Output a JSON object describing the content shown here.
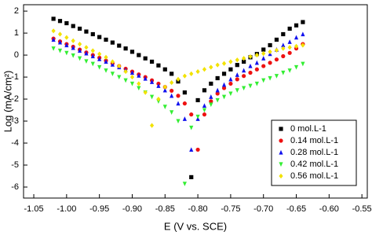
{
  "chart_data": {
    "type": "scatter",
    "x_label": "E (V vs. SCE)",
    "y_label": "Log (mA/cm²)",
    "xlim": [
      -1.0656,
      -0.5418
    ],
    "ylim": [
      -6.5,
      2.29
    ],
    "xticks": [
      {
        "value": -1.05,
        "label": "-1.05"
      },
      {
        "value": -1.0,
        "label": "-1.00"
      },
      -0.95,
      {
        "value": -0.9,
        "label": "-0.90"
      },
      -0.85,
      {
        "value": -0.8,
        "label": "-0.80"
      },
      -0.75,
      {
        "value": -0.7,
        "label": "-0.70"
      },
      -0.65,
      {
        "value": -0.6,
        "label": "-0.60"
      },
      -0.55
    ],
    "yticks": [
      -6,
      -5,
      -4,
      -3,
      -2,
      -1,
      0,
      1,
      2
    ],
    "legend": "lower right",
    "x": [
      -1.02,
      -1.01,
      -1.0,
      -0.99,
      -0.98,
      -0.97,
      -0.96,
      -0.95,
      -0.94,
      -0.93,
      -0.92,
      -0.91,
      -0.9,
      -0.89,
      -0.88,
      -0.87,
      -0.86,
      -0.85,
      -0.84,
      -0.83,
      -0.82,
      -0.81,
      -0.8,
      -0.79,
      -0.78,
      -0.77,
      -0.76,
      -0.75,
      -0.74,
      -0.73,
      -0.72,
      -0.71,
      -0.7,
      -0.69,
      -0.68,
      -0.67,
      -0.66,
      -0.65,
      -0.64
    ],
    "series": [
      {
        "name": "0 mol.L-1",
        "color": "#000000",
        "marker": "square",
        "values": [
          1.65,
          1.55,
          1.45,
          1.32,
          1.2,
          1.07,
          0.95,
          0.82,
          0.7,
          0.57,
          0.43,
          0.3,
          0.15,
          0.0,
          -0.15,
          -0.3,
          -0.47,
          -0.65,
          -0.85,
          -1.2,
          -1.7,
          -5.55,
          -2.05,
          -1.6,
          -1.3,
          -1.05,
          -0.85,
          -0.65,
          -0.45,
          -0.3,
          -0.1,
          0.05,
          0.25,
          0.45,
          0.7,
          0.95,
          1.2,
          1.35,
          1.5
        ]
      },
      {
        "name": "0.14 mol.L-1",
        "color": "#ee1111",
        "marker": "circle",
        "values": [
          0.75,
          0.62,
          0.5,
          0.38,
          0.25,
          0.12,
          0.0,
          -0.12,
          -0.25,
          -0.38,
          -0.5,
          -0.62,
          -0.75,
          -0.88,
          -1.0,
          -1.15,
          -1.3,
          -1.45,
          -1.62,
          -1.85,
          -2.2,
          -2.7,
          -4.3,
          -2.7,
          -2.1,
          -1.75,
          -1.5,
          -1.3,
          -1.1,
          -0.95,
          -0.8,
          -0.65,
          -0.5,
          -0.35,
          -0.2,
          -0.05,
          0.1,
          0.3,
          0.5
        ]
      },
      {
        "name": "0.28 mol.L-1",
        "color": "#1111ee",
        "marker": "triangle",
        "values": [
          0.7,
          0.58,
          0.45,
          0.33,
          0.2,
          0.08,
          -0.05,
          -0.18,
          -0.3,
          -0.43,
          -0.55,
          -0.68,
          -0.8,
          -0.93,
          -1.07,
          -1.22,
          -1.4,
          -1.6,
          -1.85,
          -2.2,
          -2.9,
          -4.3,
          -2.9,
          -2.3,
          -1.9,
          -1.6,
          -1.35,
          -1.1,
          -0.9,
          -0.7,
          -0.5,
          -0.35,
          -0.15,
          0.05,
          0.25,
          0.45,
          0.6,
          0.8,
          0.95
        ]
      },
      {
        "name": "0.42 mol.L-1",
        "color": "#33ee33",
        "marker": "triangle-down",
        "values": [
          0.3,
          0.2,
          0.1,
          -0.02,
          -0.15,
          -0.28,
          -0.4,
          -0.55,
          -0.7,
          -0.85,
          -1.0,
          -1.15,
          -1.3,
          -1.5,
          -1.7,
          -1.9,
          -2.1,
          -2.35,
          -2.6,
          -3.0,
          -5.85,
          -3.3,
          -2.8,
          -2.5,
          -2.25,
          -2.05,
          -1.9,
          -1.75,
          -1.6,
          -1.5,
          -1.4,
          -1.3,
          -1.15,
          -1.05,
          -0.95,
          -0.8,
          -0.7,
          -0.55,
          -0.4
        ]
      },
      {
        "name": "0.56 mol.L-1",
        "color": "#f2e200",
        "marker": "diamond",
        "values": [
          1.1,
          0.95,
          0.8,
          0.65,
          0.5,
          0.35,
          0.2,
          0.05,
          -0.1,
          -0.3,
          -0.5,
          -0.75,
          -1.0,
          -1.3,
          -1.7,
          -3.2,
          -2.0,
          -1.45,
          -1.25,
          -1.1,
          -0.95,
          -0.85,
          -0.75,
          -0.65,
          -0.55,
          -0.45,
          -0.38,
          -0.3,
          -0.22,
          -0.15,
          -0.07,
          0.0,
          0.07,
          0.15,
          0.22,
          0.3,
          0.35,
          0.4,
          0.45
        ]
      }
    ]
  }
}
